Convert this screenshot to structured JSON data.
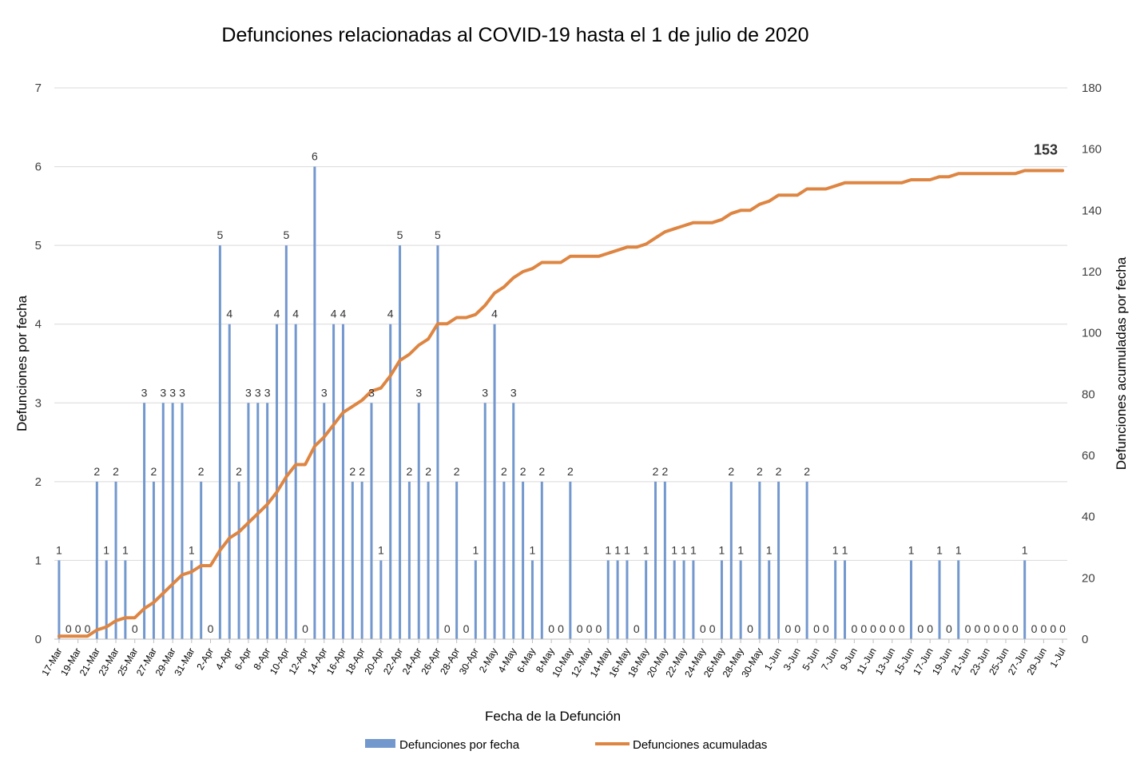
{
  "chart_data": {
    "type": "bar",
    "title": "Defunciones relacionadas al COVID-19 hasta el 1 de julio de 2020",
    "xlabel": "Fecha de la Defunción",
    "ylabel": "Defunciones por fecha",
    "y2label": "Defunciones acumuladas por fecha",
    "ylim": [
      0,
      7
    ],
    "y2lim": [
      0,
      180
    ],
    "yticks": [
      "0",
      "1",
      "2",
      "3",
      "4",
      "5",
      "6",
      "7"
    ],
    "y2ticks": [
      "0",
      "20",
      "40",
      "60",
      "80",
      "100",
      "120",
      "140",
      "160",
      "180"
    ],
    "grid": true,
    "legend_position": "bottom",
    "categories": [
      "17-Mar",
      "18-Mar",
      "19-Mar",
      "20-Mar",
      "21-Mar",
      "22-Mar",
      "23-Mar",
      "24-Mar",
      "25-Mar",
      "26-Mar",
      "27-Mar",
      "28-Mar",
      "29-Mar",
      "30-Mar",
      "31-Mar",
      "1-Apr",
      "2-Apr",
      "3-Apr",
      "4-Apr",
      "5-Apr",
      "6-Apr",
      "7-Apr",
      "8-Apr",
      "9-Apr",
      "10-Apr",
      "11-Apr",
      "12-Apr",
      "13-Apr",
      "14-Apr",
      "15-Apr",
      "16-Apr",
      "17-Apr",
      "18-Apr",
      "19-Apr",
      "20-Apr",
      "21-Apr",
      "22-Apr",
      "23-Apr",
      "24-Apr",
      "25-Apr",
      "26-Apr",
      "27-Apr",
      "28-Apr",
      "29-Apr",
      "30-Apr",
      "1-May",
      "2-May",
      "3-May",
      "4-May",
      "5-May",
      "6-May",
      "7-May",
      "8-May",
      "9-May",
      "10-May",
      "11-May",
      "12-May",
      "13-May",
      "14-May",
      "15-May",
      "16-May",
      "17-May",
      "18-May",
      "19-May",
      "20-May",
      "21-May",
      "22-May",
      "23-May",
      "24-May",
      "25-May",
      "26-May",
      "27-May",
      "28-May",
      "29-May",
      "30-May",
      "31-May",
      "1-Jun",
      "2-Jun",
      "3-Jun",
      "4-Jun",
      "5-Jun",
      "6-Jun",
      "7-Jun",
      "8-Jun",
      "9-Jun",
      "10-Jun",
      "11-Jun",
      "12-Jun",
      "13-Jun",
      "14-Jun",
      "15-Jun",
      "16-Jun",
      "17-Jun",
      "18-Jun",
      "19-Jun",
      "20-Jun",
      "21-Jun",
      "22-Jun",
      "23-Jun",
      "24-Jun",
      "25-Jun",
      "26-Jun",
      "27-Jun",
      "28-Jun",
      "29-Jun",
      "30-Jun",
      "1-Jul"
    ],
    "xtick_labels": [
      "17-Mar",
      "19-Mar",
      "21-Mar",
      "23-Mar",
      "25-Mar",
      "27-Mar",
      "29-Mar",
      "31-Mar",
      "2-Apr",
      "4-Apr",
      "6-Apr",
      "8-Apr",
      "10-Apr",
      "12-Apr",
      "14-Apr",
      "16-Apr",
      "18-Apr",
      "20-Apr",
      "22-Apr",
      "24-Apr",
      "26-Apr",
      "28-Apr",
      "30-Apr",
      "2-May",
      "4-May",
      "6-May",
      "8-May",
      "10-May",
      "12-May",
      "14-May",
      "16-May",
      "18-May",
      "20-May",
      "22-May",
      "24-May",
      "26-May",
      "28-May",
      "30-May",
      "1-Jun",
      "3-Jun",
      "5-Jun",
      "7-Jun",
      "9-Jun",
      "11-Jun",
      "13-Jun",
      "15-Jun",
      "17-Jun",
      "19-Jun",
      "21-Jun",
      "23-Jun",
      "25-Jun",
      "27-Jun",
      "29-Jun",
      "1-Jul"
    ],
    "series": [
      {
        "name": "Defunciones por fecha",
        "type": "bar",
        "axis": "left",
        "color": "#7398CE",
        "values": [
          1,
          0,
          0,
          0,
          2,
          1,
          2,
          1,
          0,
          3,
          2,
          3,
          3,
          3,
          1,
          2,
          0,
          5,
          4,
          2,
          3,
          3,
          3,
          4,
          5,
          4,
          0,
          6,
          3,
          4,
          4,
          2,
          2,
          3,
          1,
          4,
          5,
          2,
          3,
          2,
          5,
          0,
          2,
          0,
          1,
          3,
          4,
          2,
          3,
          2,
          1,
          2,
          0,
          0,
          2,
          0,
          0,
          0,
          1,
          1,
          1,
          0,
          1,
          2,
          2,
          1,
          1,
          1,
          0,
          0,
          1,
          2,
          1,
          0,
          2,
          1,
          2,
          0,
          0,
          2,
          0,
          0,
          1,
          1,
          0,
          0,
          0,
          0,
          0,
          0,
          1,
          0,
          0,
          1,
          0,
          1,
          0,
          0,
          0,
          0,
          0,
          0,
          1,
          0,
          0,
          0,
          0
        ]
      },
      {
        "name": "Defunciones acumuladas",
        "type": "line",
        "axis": "right",
        "color": "#DE8542",
        "values": [
          1,
          1,
          1,
          1,
          3,
          4,
          6,
          7,
          7,
          10,
          12,
          15,
          18,
          21,
          22,
          24,
          24,
          29,
          33,
          35,
          38,
          41,
          44,
          48,
          53,
          57,
          57,
          63,
          66,
          70,
          74,
          76,
          78,
          81,
          82,
          86,
          91,
          93,
          96,
          98,
          103,
          103,
          105,
          105,
          106,
          109,
          113,
          115,
          118,
          120,
          121,
          123,
          123,
          123,
          125,
          125,
          125,
          125,
          126,
          127,
          128,
          128,
          129,
          131,
          133,
          134,
          135,
          136,
          136,
          136,
          137,
          139,
          140,
          140,
          142,
          143,
          145,
          145,
          145,
          147,
          147,
          147,
          148,
          149,
          149,
          149,
          149,
          149,
          149,
          149,
          150,
          150,
          150,
          151,
          151,
          152,
          152,
          152,
          152,
          152,
          152,
          152,
          153,
          153,
          153,
          153,
          153
        ],
        "end_label": "153"
      }
    ]
  }
}
